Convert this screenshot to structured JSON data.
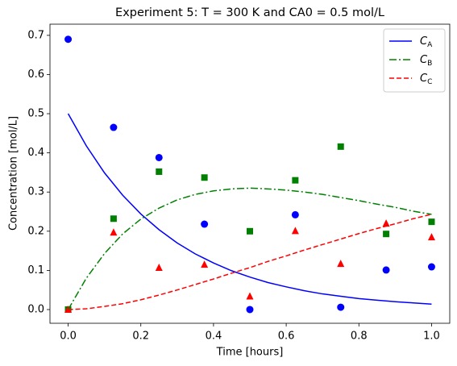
{
  "chart_data": {
    "type": "line",
    "title": "Experiment 5: T = 300 K and CA0 = 0.5 mol/L",
    "x_label": "Time [hours]",
    "y_label": "Concentration [mol/L]",
    "x": [
      0,
      0.05,
      0.1,
      0.15,
      0.2,
      0.25,
      0.3,
      0.35,
      0.4,
      0.45,
      0.5,
      0.55,
      0.6,
      0.65,
      0.7,
      0.75,
      0.8,
      0.85,
      0.9,
      0.95,
      1.0
    ],
    "series": [
      {
        "name": "CA",
        "color": "#0000ff",
        "linestyle": "solid",
        "values": [
          0.5,
          0.418,
          0.349,
          0.292,
          0.244,
          0.204,
          0.17,
          0.142,
          0.119,
          0.099,
          0.083,
          0.069,
          0.058,
          0.048,
          0.04,
          0.034,
          0.028,
          0.024,
          0.02,
          0.017,
          0.014
        ]
      },
      {
        "name": "CB",
        "color": "#008000",
        "linestyle": "dashdot",
        "values": [
          0,
          0.08,
          0.143,
          0.193,
          0.231,
          0.259,
          0.28,
          0.294,
          0.303,
          0.308,
          0.31,
          0.308,
          0.305,
          0.3,
          0.294,
          0.286,
          0.278,
          0.269,
          0.261,
          0.251,
          0.243
        ]
      },
      {
        "name": "CC",
        "color": "#ff0000",
        "linestyle": "dashed",
        "values": [
          0,
          0.002,
          0.008,
          0.015,
          0.025,
          0.037,
          0.05,
          0.064,
          0.078,
          0.093,
          0.107,
          0.123,
          0.137,
          0.152,
          0.166,
          0.18,
          0.194,
          0.207,
          0.219,
          0.232,
          0.243
        ]
      }
    ],
    "observations": {
      "type": "scatter",
      "x": [
        0,
        0.125,
        0.25,
        0.375,
        0.5,
        0.625,
        0.75,
        0.875,
        1.0
      ],
      "series": [
        {
          "color": "#0000ff",
          "marker": "circle",
          "values": [
            0.69,
            0.465,
            0.388,
            0.218,
            0.0,
            0.242,
            0.006,
            0.101,
            0.109
          ]
        },
        {
          "color": "#008000",
          "marker": "square",
          "values": [
            0,
            0.232,
            0.352,
            0.337,
            0.2,
            0.33,
            0.416,
            0.193,
            0.224
          ]
        },
        {
          "color": "#ff0000",
          "marker": "triangle",
          "values": [
            0,
            0.197,
            0.107,
            0.115,
            0.034,
            0.201,
            0.117,
            0.22,
            0.185
          ]
        }
      ]
    },
    "xlim": [
      -0.05,
      1.05
    ],
    "ylim": [
      -0.035,
      0.7285
    ],
    "xticks": [
      0.0,
      0.2,
      0.4,
      0.6,
      0.8,
      1.0
    ],
    "yticks": [
      0.0,
      0.1,
      0.2,
      0.3,
      0.4,
      0.5,
      0.6,
      0.7
    ],
    "legend": "upper right",
    "grid": false
  }
}
